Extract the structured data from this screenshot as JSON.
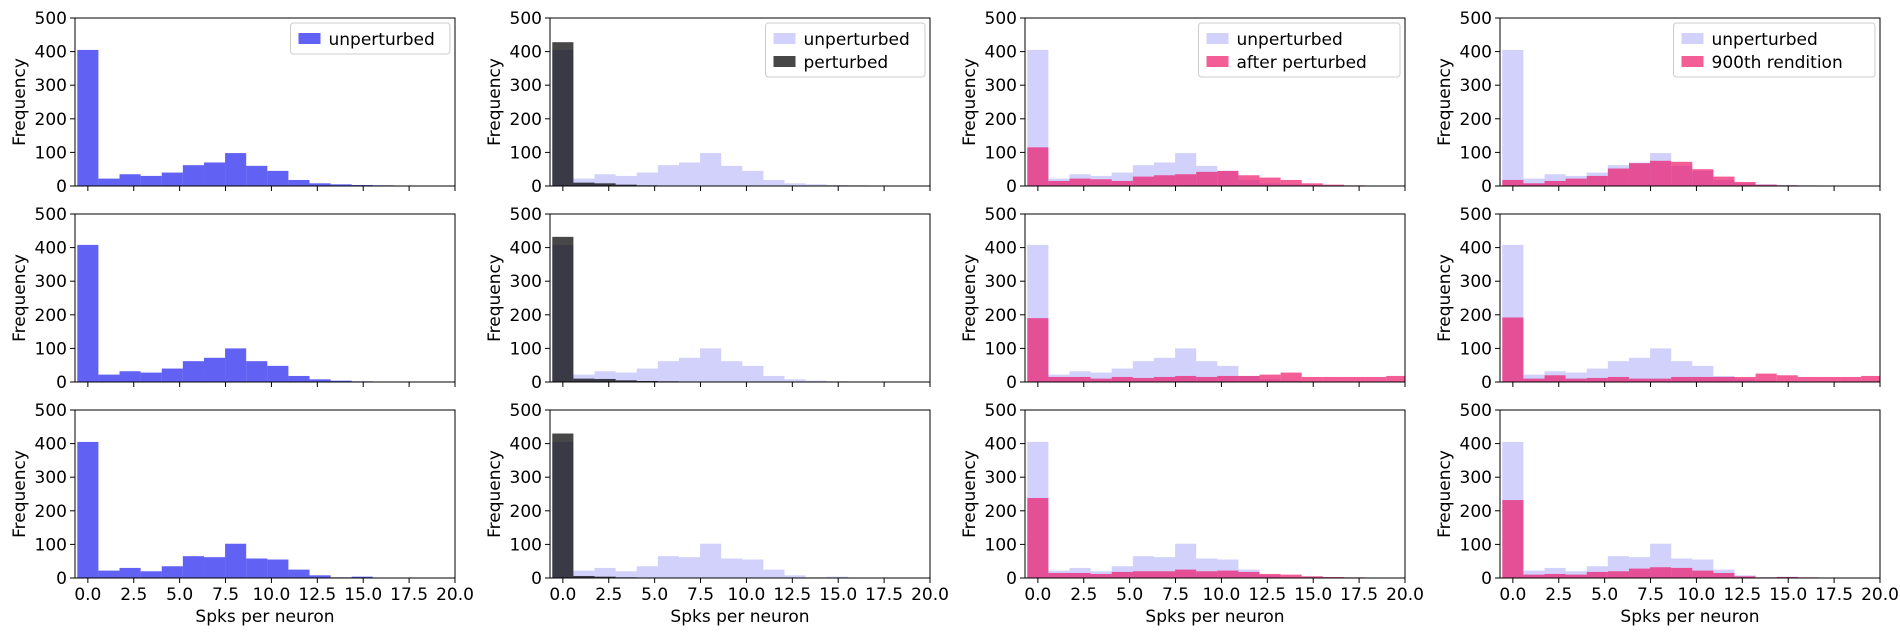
{
  "chart_data": [
    {
      "type": "bar",
      "row": 0,
      "col": 0,
      "xlabel": "",
      "ylabel": "Frequency",
      "xlim": [
        -0.7,
        20
      ],
      "ylim": [
        0,
        500
      ],
      "bin_width": 1.15,
      "bin_start": -0.575,
      "x_ticks": [
        0.0,
        2.5,
        5.0,
        7.5,
        10.0,
        12.5,
        15.0,
        17.5,
        20.0
      ],
      "y_ticks": [
        0,
        100,
        200,
        300,
        400,
        500
      ],
      "legend": "top-right",
      "series": [
        {
          "name": "unperturbed",
          "color": "#0000ee",
          "opacity": 0.62,
          "values": [
            405,
            22,
            35,
            30,
            40,
            62,
            70,
            98,
            60,
            45,
            18,
            8,
            5,
            3,
            2,
            1,
            0,
            0,
            0
          ]
        }
      ]
    },
    {
      "type": "bar",
      "row": 0,
      "col": 1,
      "xlabel": "",
      "ylabel": "Frequency",
      "xlim": [
        -0.7,
        20
      ],
      "ylim": [
        0,
        500
      ],
      "bin_width": 1.15,
      "bin_start": -0.575,
      "x_ticks": [
        0.0,
        2.5,
        5.0,
        7.5,
        10.0,
        12.5,
        15.0,
        17.5,
        20.0
      ],
      "y_ticks": [
        0,
        100,
        200,
        300,
        400,
        500
      ],
      "legend": "top-right",
      "series": [
        {
          "name": "unperturbed",
          "color": "#0000ee",
          "opacity": 0.18,
          "values": [
            405,
            22,
            35,
            30,
            40,
            62,
            70,
            98,
            60,
            45,
            18,
            8,
            5,
            3,
            2,
            1,
            0,
            0,
            0
          ]
        },
        {
          "name": "perturbed",
          "color": "#000000",
          "opacity": 0.72,
          "values": [
            428,
            10,
            8,
            4,
            2,
            1,
            1,
            0,
            0,
            0,
            0,
            0,
            0,
            0,
            0,
            0,
            0,
            0,
            0
          ]
        }
      ]
    },
    {
      "type": "bar",
      "row": 0,
      "col": 2,
      "xlabel": "",
      "ylabel": "Frequency",
      "xlim": [
        -0.7,
        20
      ],
      "ylim": [
        0,
        500
      ],
      "bin_width": 1.15,
      "bin_start": -0.575,
      "x_ticks": [
        0.0,
        2.5,
        5.0,
        7.5,
        10.0,
        12.5,
        15.0,
        17.5,
        20.0
      ],
      "y_ticks": [
        0,
        100,
        200,
        300,
        400,
        500
      ],
      "legend": "top-right",
      "series": [
        {
          "name": "unperturbed",
          "color": "#0000ee",
          "opacity": 0.18,
          "values": [
            405,
            22,
            35,
            30,
            40,
            62,
            70,
            98,
            60,
            45,
            18,
            8,
            5,
            3,
            2,
            1,
            0,
            0,
            0
          ]
        },
        {
          "name": "after perturbed",
          "color": "#ee1166",
          "opacity": 0.68,
          "values": [
            115,
            15,
            22,
            20,
            15,
            28,
            32,
            35,
            42,
            45,
            32,
            25,
            18,
            8,
            4,
            2,
            1,
            0,
            0
          ]
        }
      ]
    },
    {
      "type": "bar",
      "row": 0,
      "col": 3,
      "xlabel": "",
      "ylabel": "Frequency",
      "xlim": [
        -0.7,
        20
      ],
      "ylim": [
        0,
        500
      ],
      "bin_width": 1.15,
      "bin_start": -0.575,
      "x_ticks": [
        0.0,
        2.5,
        5.0,
        7.5,
        10.0,
        12.5,
        15.0,
        17.5,
        20.0
      ],
      "y_ticks": [
        0,
        100,
        200,
        300,
        400,
        500
      ],
      "legend": "top-right",
      "series": [
        {
          "name": "unperturbed",
          "color": "#0000ee",
          "opacity": 0.18,
          "values": [
            405,
            22,
            35,
            30,
            40,
            62,
            70,
            98,
            60,
            45,
            18,
            8,
            5,
            3,
            2,
            1,
            0,
            0,
            0
          ]
        },
        {
          "name": "900th rendition",
          "color": "#ee1166",
          "opacity": 0.68,
          "values": [
            18,
            8,
            15,
            22,
            30,
            52,
            68,
            75,
            72,
            50,
            28,
            12,
            4,
            2,
            1,
            0,
            0,
            0,
            0
          ]
        }
      ]
    },
    {
      "type": "bar",
      "row": 1,
      "col": 0,
      "xlabel": "",
      "ylabel": "Frequency",
      "xlim": [
        -0.7,
        20
      ],
      "ylim": [
        0,
        500
      ],
      "bin_width": 1.15,
      "bin_start": -0.575,
      "x_ticks": [
        0.0,
        2.5,
        5.0,
        7.5,
        10.0,
        12.5,
        15.0,
        17.5,
        20.0
      ],
      "y_ticks": [
        0,
        100,
        200,
        300,
        400,
        500
      ],
      "series": [
        {
          "name": "",
          "color": "#0000ee",
          "opacity": 0.62,
          "values": [
            408,
            22,
            32,
            28,
            40,
            62,
            72,
            100,
            62,
            48,
            18,
            8,
            4,
            2,
            1,
            0,
            0,
            0,
            0
          ]
        }
      ]
    },
    {
      "type": "bar",
      "row": 1,
      "col": 1,
      "xlabel": "",
      "ylabel": "Frequency",
      "xlim": [
        -0.7,
        20
      ],
      "ylim": [
        0,
        500
      ],
      "bin_width": 1.15,
      "bin_start": -0.575,
      "x_ticks": [
        0.0,
        2.5,
        5.0,
        7.5,
        10.0,
        12.5,
        15.0,
        17.5,
        20.0
      ],
      "y_ticks": [
        0,
        100,
        200,
        300,
        400,
        500
      ],
      "series": [
        {
          "name": "",
          "color": "#0000ee",
          "opacity": 0.18,
          "values": [
            408,
            22,
            32,
            28,
            40,
            62,
            72,
            100,
            62,
            48,
            18,
            8,
            4,
            2,
            1,
            0,
            0,
            0,
            0
          ]
        },
        {
          "name": "",
          "color": "#000000",
          "opacity": 0.72,
          "values": [
            432,
            10,
            9,
            5,
            3,
            2,
            1,
            0,
            0,
            0,
            0,
            0,
            0,
            0,
            0,
            0,
            0,
            0,
            0
          ]
        }
      ]
    },
    {
      "type": "bar",
      "row": 1,
      "col": 2,
      "xlabel": "",
      "ylabel": "Frequency",
      "xlim": [
        -0.7,
        20
      ],
      "ylim": [
        0,
        500
      ],
      "bin_width": 1.15,
      "bin_start": -0.575,
      "x_ticks": [
        0.0,
        2.5,
        5.0,
        7.5,
        10.0,
        12.5,
        15.0,
        17.5,
        20.0
      ],
      "y_ticks": [
        0,
        100,
        200,
        300,
        400,
        500
      ],
      "series": [
        {
          "name": "",
          "color": "#0000ee",
          "opacity": 0.18,
          "values": [
            408,
            22,
            32,
            28,
            40,
            62,
            72,
            100,
            62,
            48,
            18,
            8,
            4,
            2,
            1,
            0,
            0,
            0,
            0
          ]
        },
        {
          "name": "",
          "color": "#ee1166",
          "opacity": 0.68,
          "values": [
            190,
            15,
            15,
            10,
            15,
            12,
            15,
            18,
            15,
            18,
            18,
            22,
            28,
            15,
            15,
            15,
            15,
            18,
            10
          ]
        }
      ]
    },
    {
      "type": "bar",
      "row": 1,
      "col": 3,
      "xlabel": "",
      "ylabel": "Frequency",
      "xlim": [
        -0.7,
        20
      ],
      "ylim": [
        0,
        500
      ],
      "bin_width": 1.15,
      "bin_start": -0.575,
      "x_ticks": [
        0.0,
        2.5,
        5.0,
        7.5,
        10.0,
        12.5,
        15.0,
        17.5,
        20.0
      ],
      "y_ticks": [
        0,
        100,
        200,
        300,
        400,
        500
      ],
      "series": [
        {
          "name": "",
          "color": "#0000ee",
          "opacity": 0.18,
          "values": [
            408,
            22,
            32,
            28,
            40,
            62,
            72,
            100,
            62,
            48,
            18,
            8,
            4,
            2,
            1,
            0,
            0,
            0,
            0
          ]
        },
        {
          "name": "",
          "color": "#ee1166",
          "opacity": 0.68,
          "values": [
            192,
            10,
            20,
            10,
            12,
            15,
            10,
            10,
            15,
            15,
            15,
            15,
            25,
            20,
            15,
            15,
            15,
            18,
            10
          ]
        }
      ]
    },
    {
      "type": "bar",
      "row": 2,
      "col": 0,
      "xlabel": "Spks per neuron",
      "ylabel": "Frequency",
      "xlim": [
        -0.7,
        20
      ],
      "ylim": [
        0,
        500
      ],
      "bin_width": 1.15,
      "bin_start": -0.575,
      "x_ticks": [
        0.0,
        2.5,
        5.0,
        7.5,
        10.0,
        12.5,
        15.0,
        17.5,
        20.0
      ],
      "y_ticks": [
        0,
        100,
        200,
        300,
        400,
        500
      ],
      "series": [
        {
          "name": "",
          "color": "#0000ee",
          "opacity": 0.62,
          "values": [
            405,
            22,
            30,
            20,
            35,
            65,
            62,
            102,
            58,
            55,
            25,
            8,
            2,
            4,
            1,
            0,
            0,
            0,
            0
          ]
        }
      ]
    },
    {
      "type": "bar",
      "row": 2,
      "col": 1,
      "xlabel": "Spks per neuron",
      "ylabel": "Frequency",
      "xlim": [
        -0.7,
        20
      ],
      "ylim": [
        0,
        500
      ],
      "bin_width": 1.15,
      "bin_start": -0.575,
      "x_ticks": [
        0.0,
        2.5,
        5.0,
        7.5,
        10.0,
        12.5,
        15.0,
        17.5,
        20.0
      ],
      "y_ticks": [
        0,
        100,
        200,
        300,
        400,
        500
      ],
      "series": [
        {
          "name": "",
          "color": "#0000ee",
          "opacity": 0.18,
          "values": [
            405,
            22,
            30,
            20,
            35,
            65,
            62,
            102,
            58,
            55,
            25,
            8,
            2,
            4,
            1,
            0,
            0,
            0,
            0
          ]
        },
        {
          "name": "",
          "color": "#000000",
          "opacity": 0.72,
          "values": [
            430,
            6,
            4,
            2,
            1,
            0,
            0,
            0,
            0,
            0,
            0,
            0,
            0,
            0,
            0,
            0,
            0,
            0,
            0
          ]
        }
      ]
    },
    {
      "type": "bar",
      "row": 2,
      "col": 2,
      "xlabel": "Spks per neuron",
      "ylabel": "Frequency",
      "xlim": [
        -0.7,
        20
      ],
      "ylim": [
        0,
        500
      ],
      "bin_width": 1.15,
      "bin_start": -0.575,
      "x_ticks": [
        0.0,
        2.5,
        5.0,
        7.5,
        10.0,
        12.5,
        15.0,
        17.5,
        20.0
      ],
      "y_ticks": [
        0,
        100,
        200,
        300,
        400,
        500
      ],
      "series": [
        {
          "name": "",
          "color": "#0000ee",
          "opacity": 0.18,
          "values": [
            405,
            22,
            30,
            20,
            35,
            65,
            62,
            102,
            58,
            55,
            25,
            8,
            2,
            4,
            1,
            0,
            0,
            0,
            0
          ]
        },
        {
          "name": "",
          "color": "#ee1166",
          "opacity": 0.68,
          "values": [
            238,
            15,
            15,
            12,
            18,
            20,
            20,
            25,
            20,
            22,
            18,
            12,
            10,
            5,
            3,
            2,
            1,
            0,
            0
          ]
        }
      ]
    },
    {
      "type": "bar",
      "row": 2,
      "col": 3,
      "xlabel": "Spks per neuron",
      "ylabel": "Frequency",
      "xlim": [
        -0.7,
        20
      ],
      "ylim": [
        0,
        500
      ],
      "bin_width": 1.15,
      "bin_start": -0.575,
      "x_ticks": [
        0.0,
        2.5,
        5.0,
        7.5,
        10.0,
        12.5,
        15.0,
        17.5,
        20.0
      ],
      "y_ticks": [
        0,
        100,
        200,
        300,
        400,
        500
      ],
      "series": [
        {
          "name": "",
          "color": "#0000ee",
          "opacity": 0.18,
          "values": [
            405,
            22,
            30,
            20,
            35,
            65,
            62,
            102,
            58,
            55,
            25,
            8,
            2,
            4,
            1,
            0,
            0,
            0,
            0
          ]
        },
        {
          "name": "",
          "color": "#ee1166",
          "opacity": 0.68,
          "values": [
            232,
            10,
            12,
            10,
            18,
            20,
            28,
            32,
            30,
            22,
            15,
            5,
            2,
            3,
            2,
            0,
            0,
            0,
            0
          ]
        }
      ]
    }
  ]
}
